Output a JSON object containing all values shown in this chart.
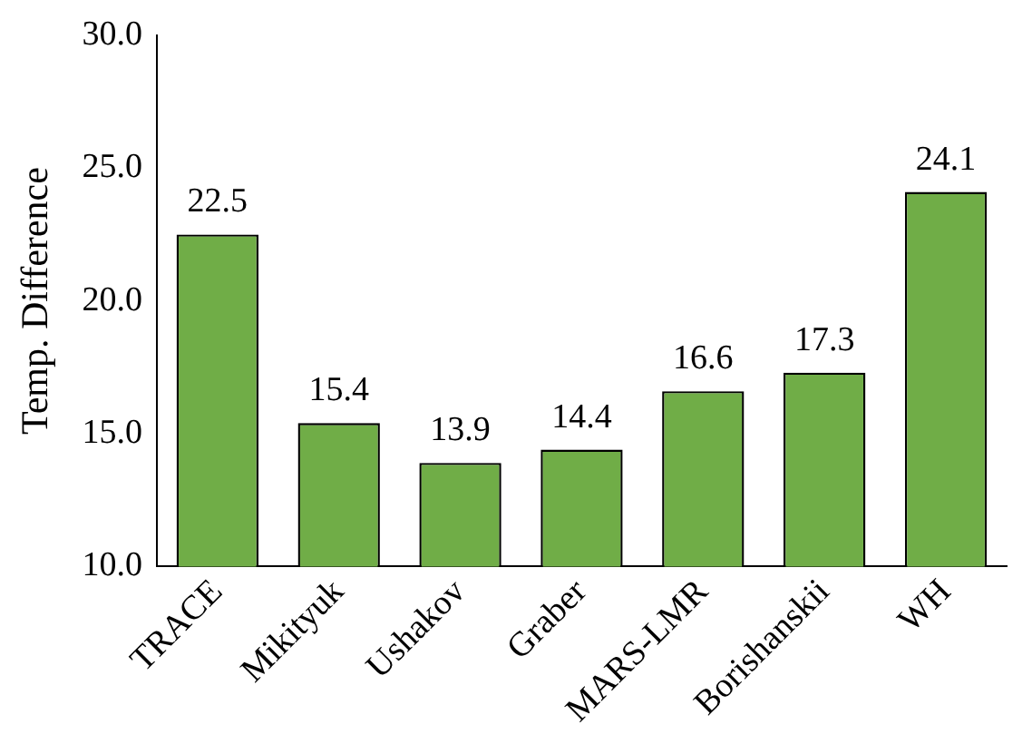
{
  "chart_data": {
    "type": "bar",
    "ylabel": "Temp. Difference",
    "categories": [
      "TRACE",
      "Mikityuk",
      "Ushakov",
      "Graber",
      "MARS-LMR",
      "Borishanskii",
      "WH"
    ],
    "values": [
      22.5,
      15.4,
      13.9,
      14.4,
      16.6,
      17.3,
      24.1
    ],
    "color": "#70ad47",
    "ylim": [
      10,
      30
    ],
    "yticks": [
      {
        "value": 10,
        "label": "10.0"
      },
      {
        "value": 15,
        "label": "15.0"
      },
      {
        "value": 20,
        "label": "20.0"
      },
      {
        "value": 25,
        "label": "25.0"
      },
      {
        "value": 30,
        "label": "30.0"
      }
    ],
    "grid": false,
    "legend": false,
    "data_labels": true
  }
}
